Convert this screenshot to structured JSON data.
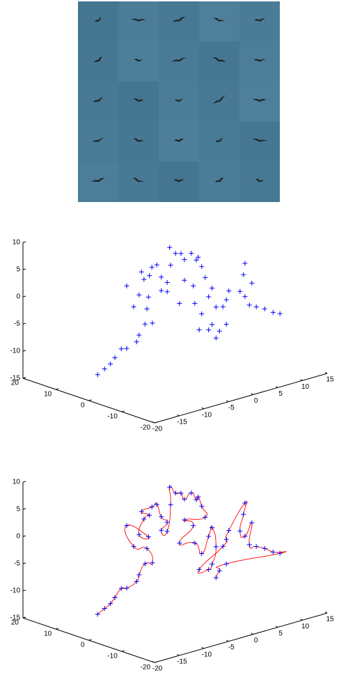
{
  "chart_data": [
    {
      "type": "scatter3d",
      "marker": "+",
      "color": "#0000ff",
      "xlim": [
        -20,
        15
      ],
      "xticks": [
        -20,
        -15,
        -10,
        -5,
        0,
        5,
        10,
        15
      ],
      "ylim": [
        -20,
        20
      ],
      "yticks": [
        -20,
        -10,
        0,
        10,
        20
      ],
      "zlim": [
        -15,
        10
      ],
      "zticks": [
        -15,
        -10,
        -5,
        0,
        5,
        10
      ],
      "x": [
        -18.2,
        -16.8,
        -15.6,
        -14.7,
        -13.4,
        -12.3,
        -10.3,
        -9.8,
        -8.6,
        -7.1,
        -8.2,
        -10.9,
        -12.3,
        -7.9,
        -9.8,
        -8.8,
        -7.7,
        -9.3,
        -7.2,
        -6.2,
        -5.3,
        -4.1,
        -5.3,
        -4.1,
        -3.4,
        -3.6,
        -2.4,
        -1.3,
        -0.6,
        0.8,
        1.8,
        2.2,
        2.9,
        3.6,
        -0.6,
        1.2,
        -1.6,
        1.5,
        2.9,
        4.3,
        5.0,
        5.8,
        5.0,
        4.3,
        2.4,
        7.2,
        7.9,
        8.4,
        5.0,
        4.7,
        4.0,
        5.0,
        6.4,
        5.9,
        7.3,
        9.0,
        10.7,
        12.1,
        7.9,
        6.5,
        5.8
      ],
      "y": [
        0,
        0,
        0,
        0,
        0,
        0,
        0,
        0,
        0,
        0,
        0,
        0,
        0,
        0,
        0,
        0,
        0,
        0,
        0,
        0,
        0,
        0,
        0,
        0,
        0,
        0,
        0,
        0,
        0,
        0,
        0,
        0,
        0,
        0,
        0,
        0,
        0,
        0,
        0,
        0,
        0,
        0,
        0,
        0,
        0,
        0,
        0,
        0,
        -10,
        -10,
        -10,
        -10,
        -10,
        -10,
        -10,
        -10,
        -10,
        -10,
        0,
        0,
        0
      ],
      "z": [
        -10.7,
        -10.0,
        -9.4,
        -8.5,
        -7.2,
        -7.4,
        -6.7,
        -5.6,
        -3.9,
        -4.1,
        -1.2,
        -0.1,
        4.1,
        0.9,
        1.8,
        4.4,
        4.8,
        5.9,
        6.2,
        6.4,
        3.9,
        2.6,
        1.4,
        0.9,
        5.6,
        8.9,
        7.5,
        7.2,
        5.9,
        6.7,
        5.2,
        5.6,
        3.7,
        1.5,
        2.1,
        0.6,
        -1.9,
        -2.7,
        -5.0,
        -2.2,
        -0.8,
        -4.5,
        -7.5,
        -8.3,
        -7.8,
        -4.8,
        -3.7,
        -2.2,
        5.8,
        3.8,
        0.9,
        -0.3,
        1.8,
        -2.1,
        -2.8,
        -3.6,
        -4.7,
        -5.3,
        -8.2,
        -9.1,
        -10.2
      ]
    },
    {
      "type": "scatter3d-curve",
      "marker": "+",
      "color": "#0000ff",
      "line_color": "#ff0000",
      "xlim": [
        -20,
        15
      ],
      "xticks": [
        -20,
        -15,
        -10,
        -5,
        0,
        5,
        10,
        15
      ],
      "ylim": [
        -20,
        20
      ],
      "yticks": [
        -20,
        -10,
        0,
        10,
        20
      ],
      "zlim": [
        -15,
        10
      ],
      "zticks": [
        -15,
        -10,
        -5,
        0,
        5,
        10
      ],
      "x": [
        -18.2,
        -16.8,
        -15.6,
        -14.7,
        -13.4,
        -12.3,
        -10.3,
        -9.8,
        -8.6,
        -7.1,
        -8.2,
        -10.9,
        -12.3,
        -7.9,
        -9.8,
        -8.8,
        -7.7,
        -9.3,
        -7.2,
        -6.2,
        -5.3,
        -4.1,
        -5.3,
        -4.1,
        -3.4,
        -3.6,
        -2.4,
        -1.3,
        -0.6,
        0.8,
        1.8,
        2.2,
        2.9,
        3.6,
        -0.6,
        1.2,
        -1.6,
        1.5,
        2.9,
        4.3,
        5.0,
        5.8,
        5.0,
        4.3,
        2.4,
        7.2,
        7.9,
        8.4,
        5.0,
        4.7,
        4.0,
        5.0,
        6.4,
        5.9,
        7.3,
        9.0,
        10.7,
        12.1,
        7.9,
        6.5,
        5.8
      ],
      "y": [
        0,
        0,
        0,
        0,
        0,
        0,
        0,
        0,
        0,
        0,
        0,
        0,
        0,
        0,
        0,
        0,
        0,
        0,
        0,
        0,
        0,
        0,
        0,
        0,
        0,
        0,
        0,
        0,
        0,
        0,
        0,
        0,
        0,
        0,
        0,
        0,
        0,
        0,
        0,
        0,
        0,
        0,
        0,
        0,
        0,
        0,
        0,
        0,
        -10,
        -10,
        -10,
        -10,
        -10,
        -10,
        -10,
        -10,
        -10,
        -10,
        0,
        0,
        0
      ],
      "z": [
        -10.7,
        -10.0,
        -9.4,
        -8.5,
        -7.2,
        -7.4,
        -6.7,
        -5.6,
        -3.9,
        -4.1,
        -1.2,
        -0.1,
        4.1,
        0.9,
        1.8,
        4.4,
        4.8,
        5.9,
        6.2,
        6.4,
        3.9,
        2.6,
        1.4,
        0.9,
        5.6,
        8.9,
        7.5,
        7.2,
        5.9,
        6.7,
        5.2,
        5.6,
        3.7,
        1.5,
        2.1,
        0.6,
        -1.9,
        -2.7,
        -5.0,
        -2.2,
        -0.8,
        -4.5,
        -7.5,
        -8.3,
        -7.8,
        -4.8,
        -3.7,
        -2.2,
        5.8,
        3.8,
        0.9,
        -0.3,
        1.8,
        -2.1,
        -2.8,
        -3.6,
        -4.7,
        -5.3,
        -8.2,
        -9.1,
        -10.2
      ]
    }
  ]
}
